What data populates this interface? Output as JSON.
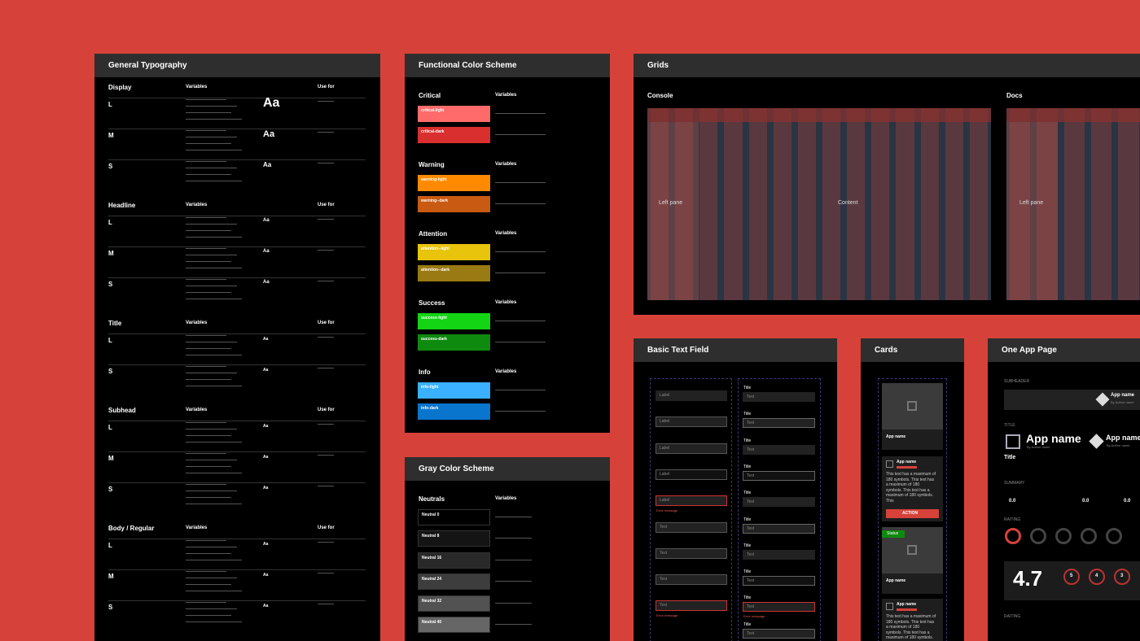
{
  "typography": {
    "title": "General Typography",
    "sections": [
      {
        "name": "Display",
        "variables": "Variables",
        "use_for": "Use for",
        "rows": [
          {
            "size": "L",
            "sample": "Aa"
          },
          {
            "size": "M",
            "sample": "Aa"
          },
          {
            "size": "S",
            "sample": "Aa"
          }
        ]
      },
      {
        "name": "Headline",
        "variables": "Variables",
        "use_for": "Use for",
        "rows": [
          {
            "size": "L",
            "sample": "Aa"
          },
          {
            "size": "M",
            "sample": "Aa"
          },
          {
            "size": "S",
            "sample": "Aa"
          }
        ]
      },
      {
        "name": "Title",
        "variables": "Variables",
        "use_for": "Use for",
        "rows": [
          {
            "size": "L",
            "sample": "Aa"
          },
          {
            "size": "S",
            "sample": "Aa"
          }
        ]
      },
      {
        "name": "Subhead",
        "variables": "Variables",
        "use_for": "Use for",
        "rows": [
          {
            "size": "L",
            "sample": "Aa"
          },
          {
            "size": "M",
            "sample": "Aa"
          },
          {
            "size": "S",
            "sample": "Aa"
          }
        ]
      },
      {
        "name": "Body / Regular",
        "variables": "Variables",
        "use_for": "Use for",
        "rows": [
          {
            "size": "L",
            "sample": "Aa"
          },
          {
            "size": "M",
            "sample": "Aa"
          },
          {
            "size": "S",
            "sample": "Aa"
          }
        ]
      }
    ]
  },
  "functional_colors": {
    "title": "Functional Color Scheme",
    "groups": [
      {
        "name": "Critical",
        "variables": "Variables",
        "swatches": [
          {
            "label": "critical-light",
            "color": "#ff6b6b"
          },
          {
            "label": "critical-dark",
            "color": "#d92f2f"
          }
        ]
      },
      {
        "name": "Warning",
        "variables": "Variables",
        "swatches": [
          {
            "label": "warning-light",
            "color": "#ff8a00"
          },
          {
            "label": "warning--dark",
            "color": "#c95a12"
          }
        ]
      },
      {
        "name": "Attention",
        "variables": "Variables",
        "swatches": [
          {
            "label": "attention--light",
            "color": "#e8c40c"
          },
          {
            "label": "attention--dark",
            "color": "#9a7a12"
          }
        ]
      },
      {
        "name": "Success",
        "variables": "Variables",
        "swatches": [
          {
            "label": "success-light",
            "color": "#13d513"
          },
          {
            "label": "success-dark",
            "color": "#0e8a0e"
          }
        ]
      },
      {
        "name": "Info",
        "variables": "Variables",
        "swatches": [
          {
            "label": "info-light",
            "color": "#3ab0ff"
          },
          {
            "label": "info-dark",
            "color": "#0a75cc"
          }
        ]
      }
    ]
  },
  "gray_colors": {
    "title": "Gray Color Scheme",
    "group": "Neutrals",
    "variables": "Variables",
    "swatches": [
      {
        "label": "Neutral 0",
        "color": "#000000"
      },
      {
        "label": "Neutral 8",
        "color": "#141414"
      },
      {
        "label": "Neutral 16",
        "color": "#292929"
      },
      {
        "label": "Neutral 24",
        "color": "#3d3d3d"
      },
      {
        "label": "Neutral 32",
        "color": "#525252"
      },
      {
        "label": "Neutral 40",
        "color": "#666666"
      }
    ]
  },
  "grids": {
    "title": "Grids",
    "console": {
      "label": "Console",
      "left": "Left pane",
      "content": "Content"
    },
    "docs": {
      "label": "Docs",
      "left": "Left pane"
    }
  },
  "text_field": {
    "title": "Basic Text Field",
    "left": [
      "Label",
      "Label",
      "Label",
      "Label",
      "Label",
      "Text",
      "Text",
      "Text",
      "Text"
    ],
    "left_error": "Error message",
    "right_title": "Title",
    "right": [
      "Text",
      "Text",
      "Text",
      "Text",
      "Text",
      "Text",
      "Text",
      "Text",
      "Text",
      "Text"
    ],
    "right_error": "Error message"
  },
  "cards": {
    "title": "Cards",
    "app_name": "App name",
    "body": "This text has a maximum of 180 symbols. This text has a maximum of 180 symbols. This text has a maximum of 180 symbols. This",
    "action": "ACTION",
    "status": "Status"
  },
  "app_page": {
    "title": "One App Page",
    "subheader": "SUBHEADER",
    "title_label": "TITLE",
    "app_name": "App name",
    "author": "By Author name",
    "title_text": "Title",
    "summary": "SUMMARY",
    "summary_values": [
      "0.0",
      "0.0",
      "0.0"
    ],
    "rating": "RAITING",
    "score": "4.7",
    "stars": [
      "5",
      "4",
      "3"
    ],
    "rating2": "RAITING"
  }
}
